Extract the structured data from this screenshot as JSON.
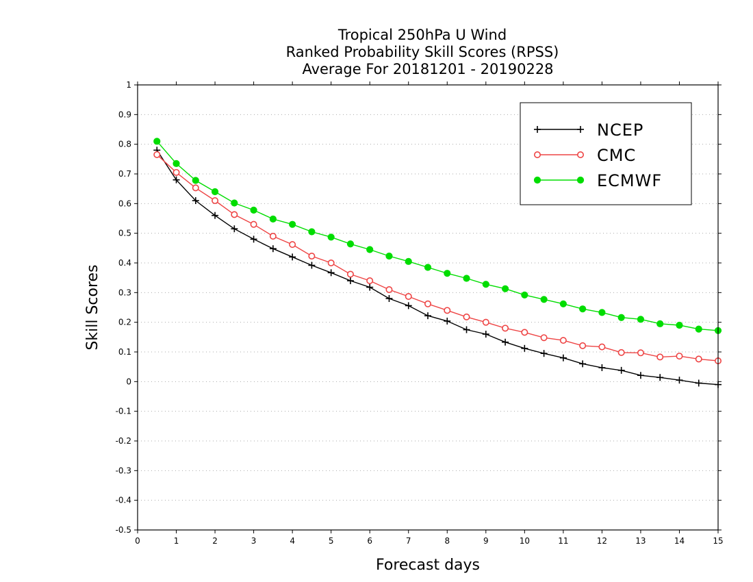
{
  "chart_data": {
    "type": "line",
    "title": [
      "Tropical 250hPa U Wind",
      "Ranked Probability Skill Scores (RPSS)",
      "Average For 20181201 - 20190228"
    ],
    "xlabel": "Forecast days",
    "ylabel": "Skill Scores",
    "xlim": [
      0,
      15
    ],
    "ylim": [
      -0.5,
      1
    ],
    "xticks": [
      "0",
      "1",
      "2",
      "3",
      "4",
      "5",
      "6",
      "7",
      "8",
      "9",
      "10",
      "11",
      "12",
      "13",
      "14",
      "15"
    ],
    "yticks": [
      "-0.5",
      "-0.4",
      "-0.3",
      "-0.2",
      "-0.1",
      "0",
      "0.1",
      "0.2",
      "0.3",
      "0.4",
      "0.5",
      "0.6",
      "0.7",
      "0.8",
      "0.9",
      "1"
    ],
    "grid": true,
    "legend_position": "top-right",
    "x": [
      0.5,
      1,
      1.5,
      2,
      2.5,
      3,
      3.5,
      4,
      4.5,
      5,
      5.5,
      6,
      6.5,
      7,
      7.5,
      8,
      8.5,
      9,
      9.5,
      10,
      10.5,
      11,
      11.5,
      12,
      12.5,
      13,
      13.5,
      14,
      14.5,
      15
    ],
    "series": [
      {
        "name": "NCEP",
        "color": "#000000",
        "marker": "plus",
        "values": [
          0.78,
          0.68,
          0.61,
          0.56,
          0.515,
          0.48,
          0.448,
          0.42,
          0.392,
          0.367,
          0.34,
          0.318,
          0.28,
          0.256,
          0.222,
          0.204,
          0.175,
          0.16,
          0.133,
          0.112,
          0.095,
          0.08,
          0.06,
          0.047,
          0.038,
          0.021,
          0.014,
          0.005,
          -0.005,
          -0.01
        ]
      },
      {
        "name": "CMC",
        "color": "#ee4444",
        "marker": "open-circle",
        "values": [
          0.765,
          0.705,
          0.653,
          0.61,
          0.563,
          0.53,
          0.49,
          0.462,
          0.423,
          0.4,
          0.362,
          0.34,
          0.31,
          0.287,
          0.262,
          0.24,
          0.218,
          0.2,
          0.18,
          0.166,
          0.148,
          0.139,
          0.121,
          0.117,
          0.098,
          0.097,
          0.083,
          0.086,
          0.076,
          0.07
        ]
      },
      {
        "name": "ECMWF",
        "color": "#00dd00",
        "marker": "filled-circle",
        "values": [
          0.81,
          0.735,
          0.678,
          0.64,
          0.602,
          0.578,
          0.548,
          0.53,
          0.505,
          0.487,
          0.464,
          0.445,
          0.423,
          0.405,
          0.385,
          0.365,
          0.348,
          0.328,
          0.313,
          0.292,
          0.277,
          0.262,
          0.245,
          0.233,
          0.216,
          0.21,
          0.195,
          0.19,
          0.177,
          0.172
        ]
      }
    ]
  }
}
